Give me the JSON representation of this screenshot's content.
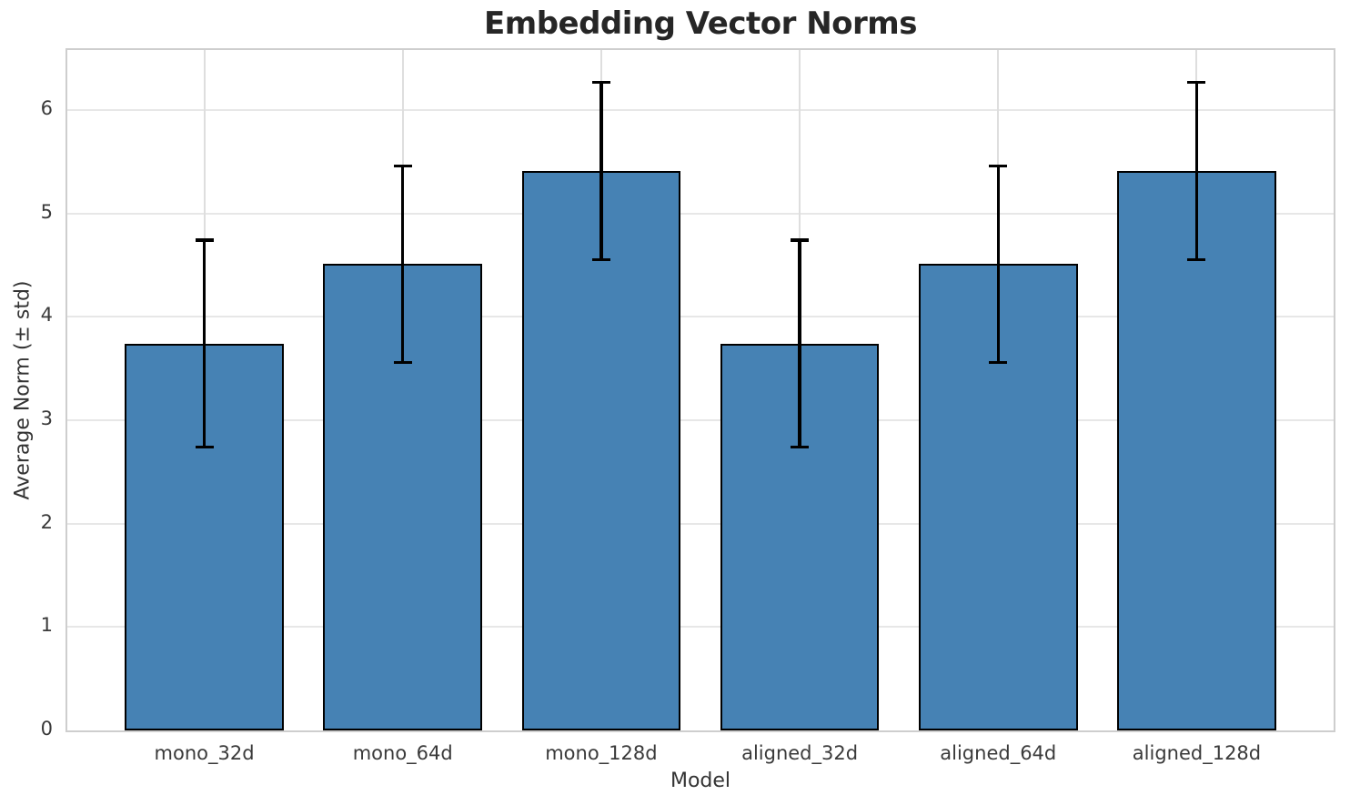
{
  "chart_data": {
    "type": "bar",
    "title": "Embedding Vector Norms",
    "xlabel": "Model",
    "ylabel": "Average Norm (± std)",
    "categories": [
      "mono_32d",
      "mono_64d",
      "mono_128d",
      "aligned_32d",
      "aligned_64d",
      "aligned_128d"
    ],
    "series": [
      {
        "name": "average_norm",
        "values": [
          3.74,
          4.51,
          5.41,
          3.74,
          4.51,
          5.41
        ],
        "errors": [
          1.0,
          0.95,
          0.86,
          1.0,
          0.95,
          0.86
        ]
      }
    ],
    "yticks": [
      0,
      1,
      2,
      3,
      4,
      5,
      6
    ],
    "ylim": [
      0,
      6.58
    ],
    "xlim": [
      -0.69,
      5.69
    ],
    "bar_width_units": 0.8,
    "grid": "both",
    "legend_position": "none",
    "error_bars": "vertical, capped, ± std",
    "colors": {
      "bar_fill": "#4682B4",
      "bar_edge": "#000000",
      "error_bar": "#000000",
      "grid_line": "#e3e3e3",
      "spine": "#cecece",
      "tick_text": "#3a3a3a",
      "title_text": "#262626",
      "background": "#ffffff"
    }
  }
}
